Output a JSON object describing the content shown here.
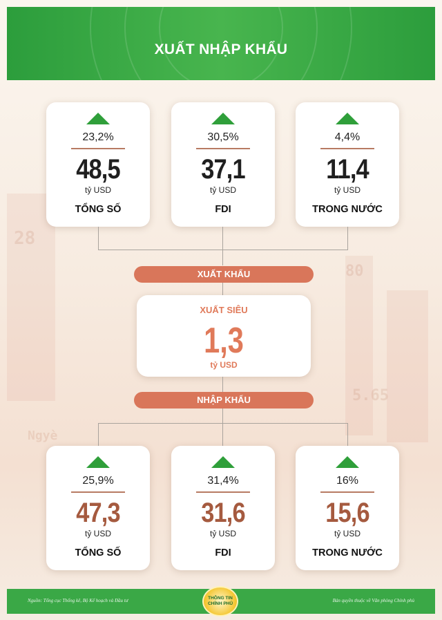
{
  "header": {
    "title": "XUẤT NHẬP KHẨU"
  },
  "export": {
    "section_label": "XUẤT KHẨU",
    "cards": [
      {
        "change": "23,2%",
        "value": "48,5",
        "unit": "tỷ USD",
        "label": "TỔNG SỐ",
        "trend": "up-arrow-icon"
      },
      {
        "change": "30,5%",
        "value": "37,1",
        "unit": "tỷ USD",
        "label": "FDI",
        "trend": "up-arrow-icon"
      },
      {
        "change": "4,4%",
        "value": "11,4",
        "unit": "tỷ USD",
        "label": "TRONG NƯỚC",
        "trend": "up-arrow-icon"
      }
    ]
  },
  "balance": {
    "label": "XUẤT SIÊU",
    "value": "1,3",
    "unit": "tỷ USD"
  },
  "import": {
    "section_label": "NHẬP KHẨU",
    "cards": [
      {
        "change": "25,9%",
        "value": "47,3",
        "unit": "tỷ USD",
        "label": "TỔNG SỐ",
        "trend": "up-arrow-icon"
      },
      {
        "change": "31,4%",
        "value": "31,6",
        "unit": "tỷ USD",
        "label": "FDI",
        "trend": "up-arrow-icon"
      },
      {
        "change": "16%",
        "value": "15,6",
        "unit": "tỷ USD",
        "label": "TRONG NƯỚC",
        "trend": "up-arrow-icon"
      }
    ]
  },
  "footer": {
    "source": "Nguồn: Tổng cục Thống kê, Bộ Kế hoạch và Đầu tư",
    "logo_line1": "THÔNG TIN",
    "logo_line2": "CHÍNH PHỦ",
    "copyright": "Bản quyền thuộc về Văn phòng Chính phủ"
  },
  "colors": {
    "header_green": "#48b54e",
    "arrow_green": "#2f9f3a",
    "pill": "#d9765a",
    "balance_accent": "#e07a5a",
    "import_value": "#a55a3f"
  }
}
